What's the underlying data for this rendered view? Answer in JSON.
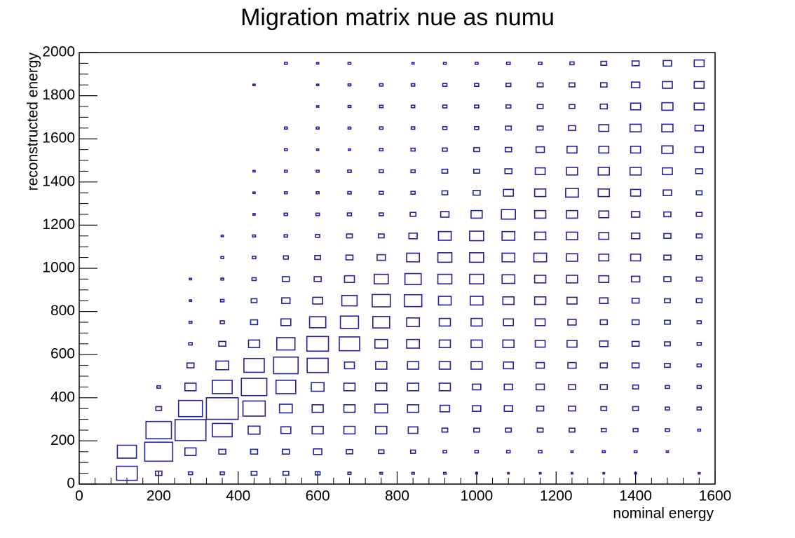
{
  "chart_data": {
    "type": "box",
    "title": "Migration matrix nue as numu",
    "xlabel": "nominal energy",
    "ylabel": "reconstructed energy",
    "color": "#1f1fa0",
    "xlim": [
      0,
      1600
    ],
    "ylim": [
      0,
      2000
    ],
    "xticks": [
      0,
      200,
      400,
      600,
      800,
      1000,
      1200,
      1400,
      1600
    ],
    "yticks": [
      0,
      200,
      400,
      600,
      800,
      1000,
      1200,
      1400,
      1600,
      1800,
      2000
    ],
    "xbins": [
      80,
      160,
      240,
      320,
      400,
      480,
      560,
      640,
      720,
      800,
      880,
      960,
      1040,
      1120,
      1200,
      1280,
      1360,
      1440,
      1520,
      1600
    ],
    "ybins": [
      0,
      100,
      200,
      300,
      400,
      500,
      600,
      700,
      800,
      900,
      1000,
      1100,
      1200,
      1300,
      1400,
      1500,
      1600,
      1700,
      1800,
      1900,
      2000
    ],
    "values": [
      [
        65,
        20,
        13,
        13,
        18,
        18,
        15,
        10,
        8,
        8,
        8,
        6,
        5,
        5,
        5,
        5,
        6,
        null,
        6
      ],
      [
        60,
        88,
        35,
        22,
        22,
        22,
        26,
        20,
        17,
        15,
        11,
        11,
        11,
        11,
        7,
        9,
        9,
        7,
        null
      ],
      [
        null,
        80,
        97,
        62,
        37,
        31,
        35,
        35,
        35,
        30,
        18,
        18,
        18,
        18,
        18,
        15,
        15,
        13,
        9
      ],
      [
        null,
        18,
        75,
        100,
        70,
        40,
        35,
        35,
        40,
        35,
        30,
        26,
        26,
        22,
        22,
        18,
        18,
        13,
        13
      ],
      [
        null,
        11,
        35,
        62,
        80,
        62,
        40,
        35,
        35,
        35,
        35,
        26,
        26,
        26,
        22,
        22,
        18,
        13,
        13
      ],
      [
        null,
        null,
        22,
        40,
        64,
        77,
        66,
        31,
        35,
        35,
        35,
        35,
        31,
        26,
        26,
        22,
        22,
        18,
        13
      ],
      [
        null,
        null,
        11,
        22,
        35,
        57,
        68,
        64,
        40,
        40,
        35,
        35,
        35,
        31,
        31,
        26,
        22,
        18,
        13
      ],
      [
        null,
        null,
        9,
        13,
        22,
        31,
        51,
        57,
        53,
        40,
        35,
        35,
        31,
        31,
        26,
        22,
        22,
        18,
        13
      ],
      [
        null,
        null,
        7,
        11,
        18,
        26,
        31,
        48,
        57,
        55,
        40,
        40,
        35,
        35,
        31,
        26,
        22,
        18,
        18
      ],
      [
        null,
        null,
        7,
        9,
        13,
        22,
        22,
        31,
        44,
        51,
        44,
        44,
        40,
        35,
        35,
        31,
        26,
        22,
        18
      ],
      [
        null,
        null,
        null,
        9,
        11,
        15,
        18,
        22,
        26,
        40,
        44,
        44,
        40,
        40,
        35,
        31,
        31,
        22,
        18
      ],
      [
        null,
        null,
        null,
        7,
        9,
        11,
        13,
        18,
        18,
        26,
        40,
        44,
        40,
        35,
        35,
        31,
        26,
        22,
        18
      ],
      [
        null,
        null,
        null,
        null,
        7,
        11,
        11,
        13,
        13,
        18,
        26,
        35,
        44,
        35,
        35,
        31,
        26,
        22,
        18
      ],
      [
        null,
        null,
        null,
        null,
        7,
        9,
        9,
        11,
        13,
        13,
        18,
        22,
        31,
        35,
        40,
        35,
        31,
        26,
        18
      ],
      [
        null,
        null,
        null,
        null,
        7,
        9,
        9,
        11,
        13,
        13,
        18,
        18,
        22,
        31,
        35,
        35,
        35,
        31,
        22
      ],
      [
        null,
        null,
        null,
        null,
        null,
        9,
        7,
        7,
        11,
        13,
        15,
        18,
        20,
        26,
        31,
        31,
        31,
        35,
        26
      ],
      [
        null,
        null,
        null,
        null,
        null,
        9,
        9,
        9,
        11,
        11,
        13,
        13,
        18,
        18,
        22,
        31,
        35,
        35,
        26
      ],
      [
        null,
        null,
        null,
        null,
        null,
        null,
        7,
        9,
        11,
        11,
        13,
        13,
        15,
        18,
        18,
        22,
        31,
        35,
        31
      ],
      [
        null,
        null,
        null,
        null,
        7,
        null,
        7,
        9,
        11,
        11,
        13,
        13,
        15,
        18,
        18,
        20,
        26,
        31,
        31
      ],
      [
        null,
        null,
        null,
        null,
        null,
        9,
        7,
        9,
        null,
        7,
        9,
        9,
        11,
        11,
        13,
        18,
        22,
        26,
        31
      ]
    ]
  }
}
